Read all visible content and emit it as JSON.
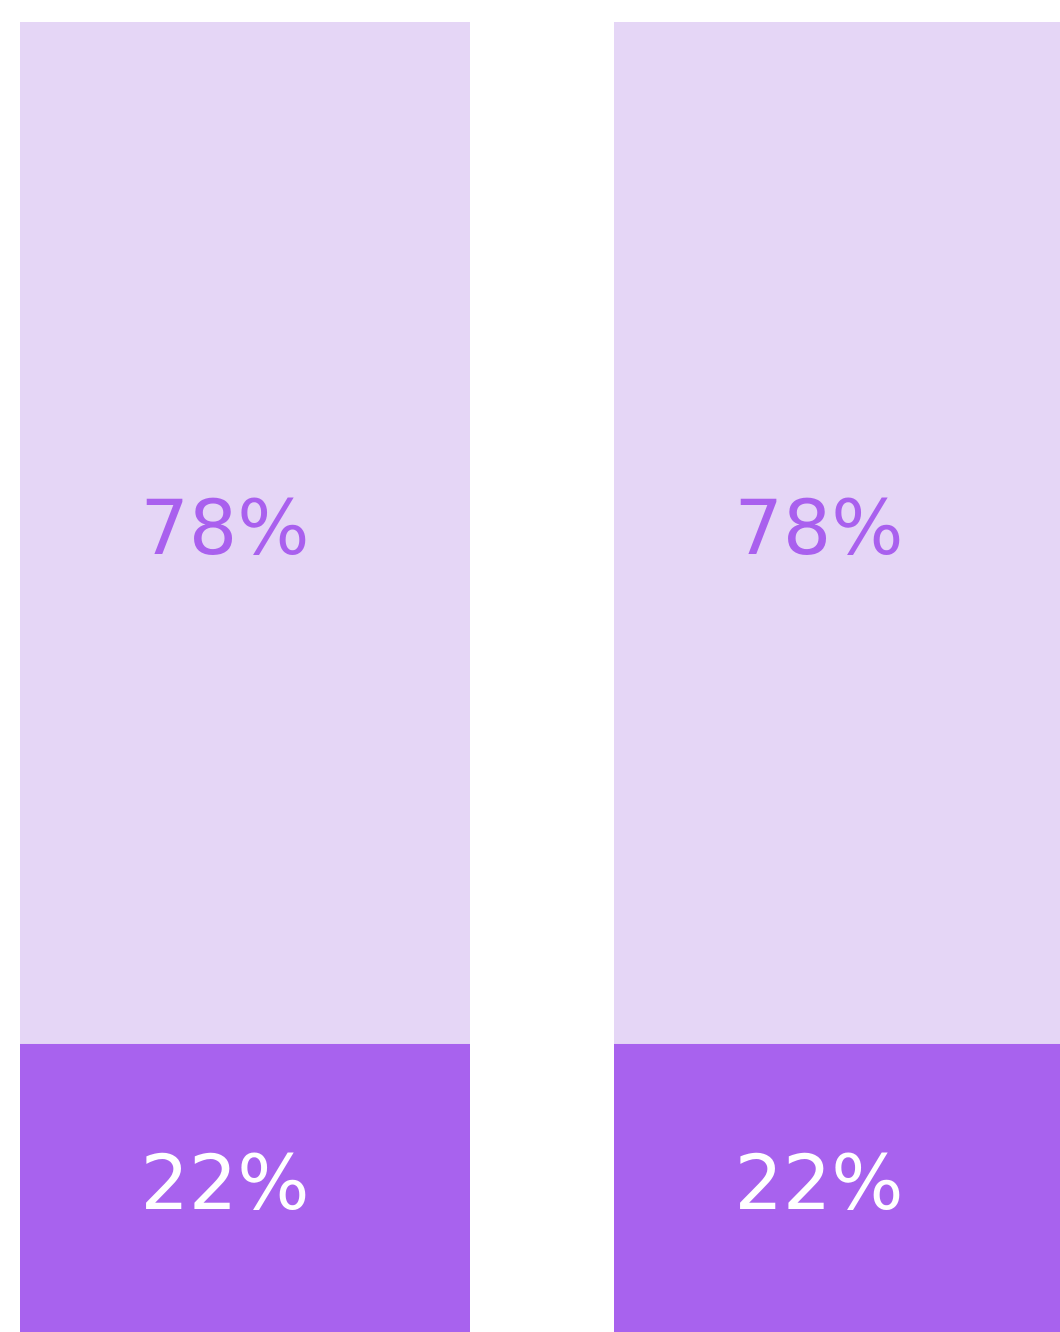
{
  "chart_data": {
    "type": "bar",
    "stacked": true,
    "categories": [
      null,
      null
    ],
    "series": [
      {
        "color": "#a862ee",
        "label_color": "#ffffff",
        "values": [
          22,
          22
        ],
        "value_labels": [
          "22%",
          "22%"
        ]
      },
      {
        "color": "#e5d6f6",
        "label_color": "#a960ee",
        "values": [
          78,
          78
        ],
        "value_labels": [
          "78%",
          "78%"
        ]
      }
    ],
    "ylim": [
      0,
      100
    ]
  }
}
